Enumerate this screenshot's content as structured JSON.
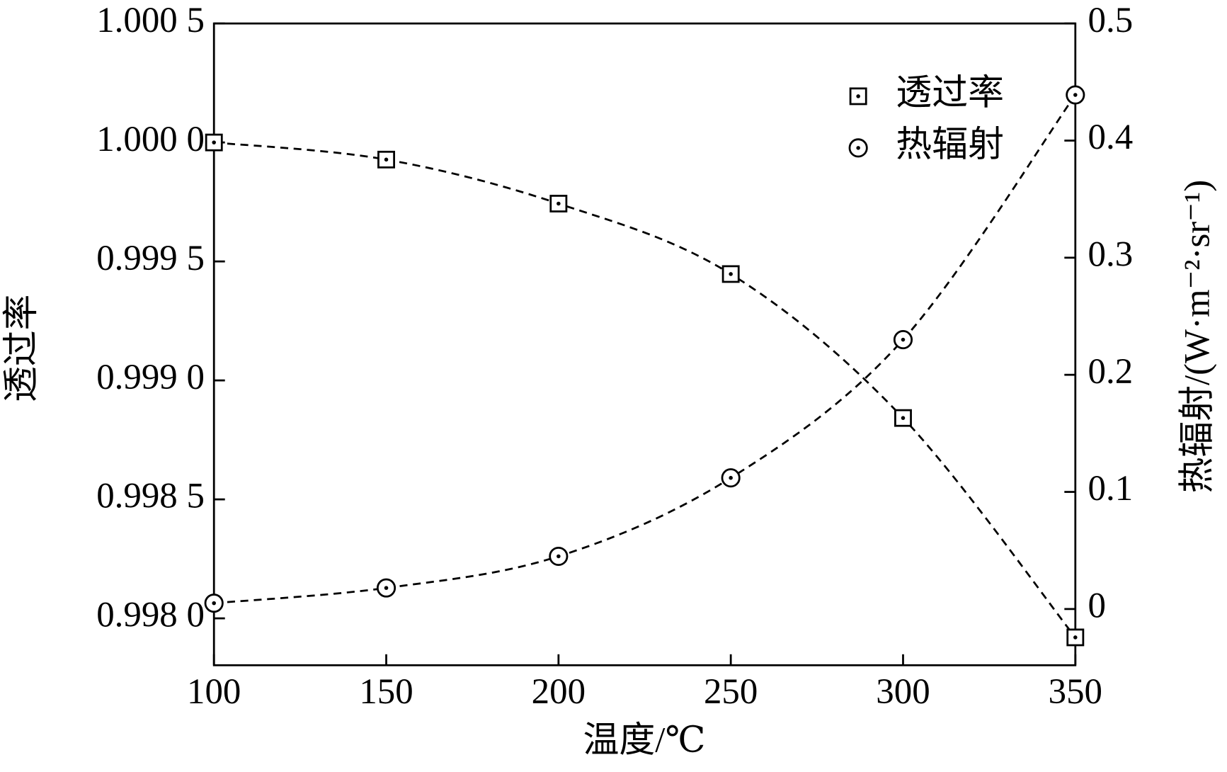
{
  "chart_data": {
    "type": "line",
    "x_label": "温度/℃",
    "y_label": "透过率",
    "y2_label": "热辐射/(W·m⁻²·sr⁻¹)",
    "x": [
      100,
      150,
      200,
      250,
      300,
      350
    ],
    "series": [
      {
        "name": "透过率",
        "color": "#000000",
        "marker": "square",
        "values": [
          1.0,
          0.999928,
          0.999743,
          0.999447,
          0.998842,
          0.99792
        ]
      },
      {
        "name": "热辐射",
        "color": "#000000",
        "marker": "circle",
        "axis": "y2",
        "values": [
          0.005,
          0.018,
          0.045,
          0.112,
          0.23,
          0.439
        ]
      }
    ],
    "xlim": [
      100,
      350
    ],
    "xticks": [
      100,
      150,
      200,
      250,
      300,
      350
    ],
    "ylim": [
      0.997803,
      1.0005
    ],
    "yticks": [
      {
        "value": 1.0005,
        "label": "1.000 5"
      },
      {
        "value": 1.0,
        "label": "1.000 0"
      },
      {
        "value": 0.9995,
        "label": "0.999 5"
      },
      {
        "value": 0.999,
        "label": "0.999 0"
      },
      {
        "value": 0.9985,
        "label": "0.998 5"
      },
      {
        "value": 0.998,
        "label": "0.998 0"
      }
    ],
    "y2lim": [
      -0.048,
      0.5
    ],
    "y2ticks": [
      0.5,
      0.4,
      0.3,
      0.2,
      0.1,
      0
    ],
    "legend": "upper right",
    "grid": false
  }
}
